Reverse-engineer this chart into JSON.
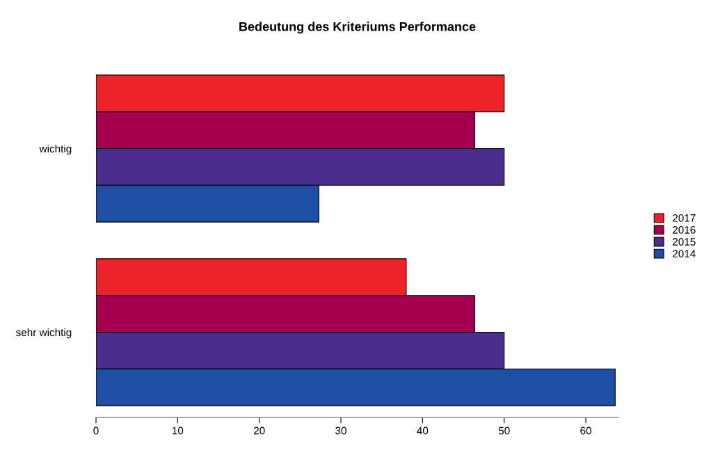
{
  "chart_data": {
    "type": "bar",
    "orientation": "horizontal",
    "title": "Bedeutung des Kriteriums Performance",
    "categories": [
      "wichtig",
      "sehr wichtig"
    ],
    "series": [
      {
        "name": "2017",
        "color": "#ee2229",
        "values": [
          50,
          38
        ]
      },
      {
        "name": "2016",
        "color": "#a50050",
        "values": [
          46.4,
          46.4
        ]
      },
      {
        "name": "2015",
        "color": "#4a2d8c",
        "values": [
          50,
          50
        ]
      },
      {
        "name": "2014",
        "color": "#1f4fa5",
        "values": [
          27.3,
          63.6
        ]
      }
    ],
    "xlim": [
      0,
      64
    ],
    "xticks": [
      0,
      10,
      20,
      30,
      40,
      50,
      60
    ],
    "grid": false,
    "legend": "right"
  }
}
